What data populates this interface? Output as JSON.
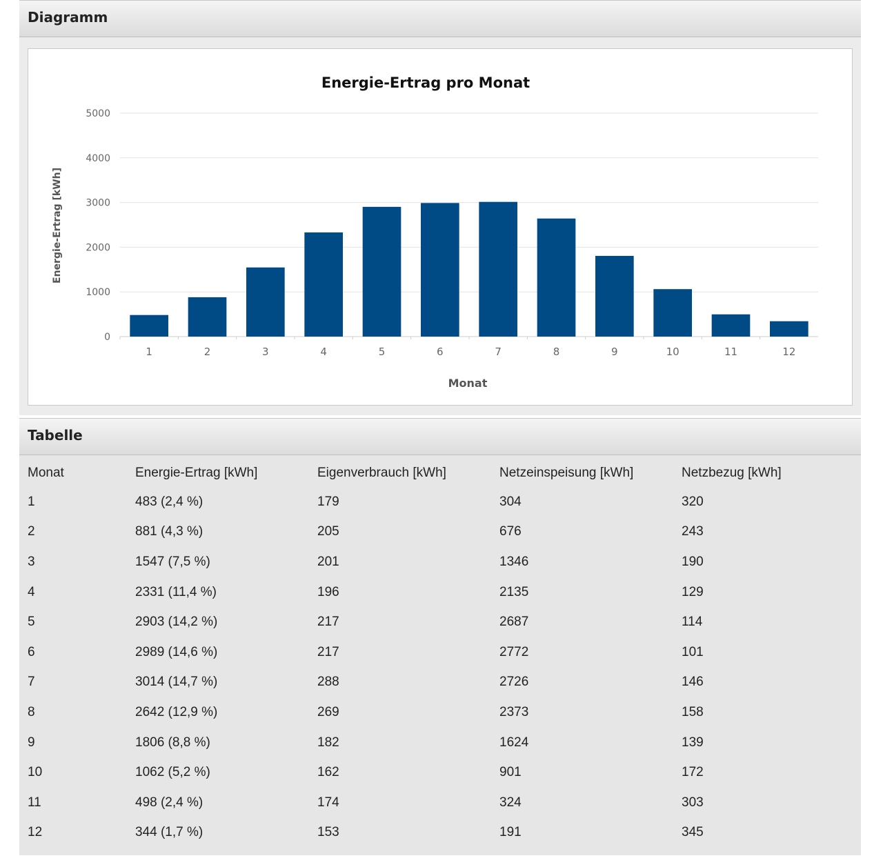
{
  "diagram": {
    "title": "Diagramm"
  },
  "table_section": {
    "title": "Tabelle"
  },
  "chart_data": {
    "type": "bar",
    "title": "Energie-Ertrag pro Monat",
    "xlabel": "Monat",
    "ylabel": "Energie-Ertrag [kWh]",
    "categories": [
      "1",
      "2",
      "3",
      "4",
      "5",
      "6",
      "7",
      "8",
      "9",
      "10",
      "11",
      "12"
    ],
    "values": [
      483,
      881,
      1547,
      2331,
      2903,
      2989,
      3014,
      2642,
      1806,
      1062,
      498,
      344
    ],
    "ylim": [
      0,
      5000
    ],
    "yticks": [
      "0",
      "1000",
      "2000",
      "3000",
      "4000",
      "5000"
    ],
    "grid": true,
    "bar_color": "#004a85"
  },
  "table": {
    "headers": [
      "Monat",
      "Energie-Ertrag [kWh]",
      "Eigenverbrauch [kWh]",
      "Netzeinspeisung [kWh]",
      "Netzbezug [kWh]"
    ],
    "rows": [
      [
        "1",
        "483 (2,4 %)",
        "179",
        "304",
        "320"
      ],
      [
        "2",
        "881 (4,3 %)",
        "205",
        "676",
        "243"
      ],
      [
        "3",
        "1547 (7,5 %)",
        "201",
        "1346",
        "190"
      ],
      [
        "4",
        "2331 (11,4 %)",
        "196",
        "2135",
        "129"
      ],
      [
        "5",
        "2903 (14,2 %)",
        "217",
        "2687",
        "114"
      ],
      [
        "6",
        "2989 (14,6 %)",
        "217",
        "2772",
        "101"
      ],
      [
        "7",
        "3014 (14,7 %)",
        "288",
        "2726",
        "146"
      ],
      [
        "8",
        "2642 (12,9 %)",
        "269",
        "2373",
        "158"
      ],
      [
        "9",
        "1806 (8,8 %)",
        "182",
        "1624",
        "139"
      ],
      [
        "10",
        "1062 (5,2 %)",
        "162",
        "901",
        "172"
      ],
      [
        "11",
        "498 (2,4 %)",
        "174",
        "324",
        "303"
      ],
      [
        "12",
        "344 (1,7 %)",
        "153",
        "191",
        "345"
      ]
    ]
  }
}
